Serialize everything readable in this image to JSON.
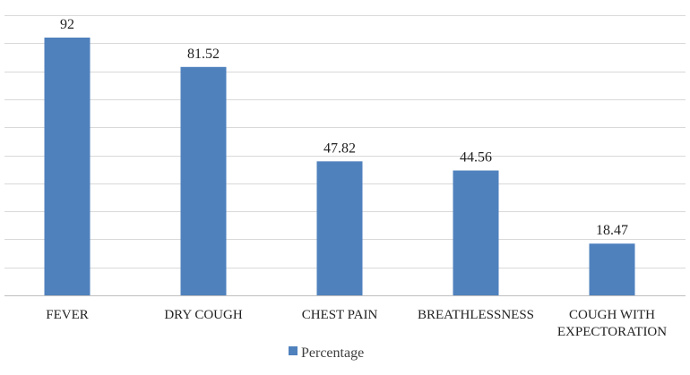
{
  "chart_data": {
    "type": "bar",
    "title": "",
    "xlabel": "",
    "ylabel": "",
    "categories": [
      "FEVER",
      "DRY COUGH",
      "CHEST PAIN",
      "BREATHLESSNESS",
      "COUGH WITH EXPECTORATION"
    ],
    "category_lines": [
      [
        "FEVER"
      ],
      [
        "DRY COUGH"
      ],
      [
        "CHEST PAIN"
      ],
      [
        "BREATHLESSNESS"
      ],
      [
        "COUGH WITH",
        "EXPECTORATION"
      ]
    ],
    "series": [
      {
        "name": "Percentage",
        "values": [
          92,
          81.52,
          47.82,
          44.56,
          18.47
        ],
        "labels": [
          "92",
          "81.52",
          "47.82",
          "44.56",
          "18.47"
        ],
        "color": "#4f81bd"
      }
    ],
    "ylim": [
      0,
      100
    ],
    "y_gridline_step": 10,
    "grid": true,
    "legend_position": "bottom",
    "show_data_labels": true
  }
}
